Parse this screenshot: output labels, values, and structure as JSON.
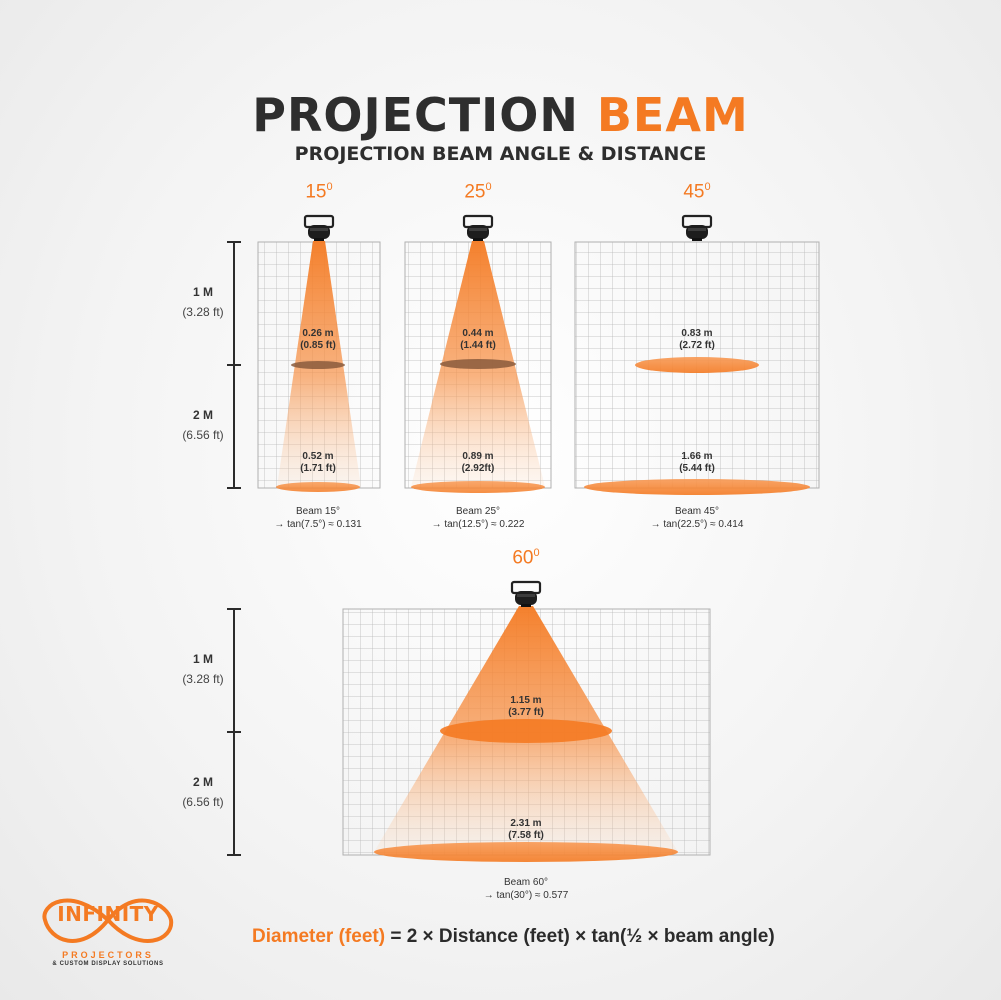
{
  "header": {
    "title_main": "PROJECTION",
    "title_accent": "BEAM",
    "subtitle": "PROJECTION BEAM ANGLE & DISTANCE"
  },
  "scale": {
    "one_m": "1 M",
    "one_m_ft": "(3.28 ft)",
    "two_m": "2 M",
    "two_m_ft": "(6.56 ft)"
  },
  "beams": [
    {
      "angle": "15",
      "mid_m": "0.26 m",
      "mid_ft": "(0.85 ft)",
      "far_m": "0.52 m",
      "far_ft": "(1.71 ft)",
      "caption_1": "Beam 15°",
      "caption_2": "→ tan(7.5°) ≈ 0.131"
    },
    {
      "angle": "25",
      "mid_m": "0.44 m",
      "mid_ft": "(1.44 ft)",
      "far_m": "0.89 m",
      "far_ft": "(2.92ft)",
      "caption_1": "Beam 25°",
      "caption_2": "→ tan(12.5°) ≈ 0.222"
    },
    {
      "angle": "45",
      "mid_m": "0.83 m",
      "mid_ft": "(2.72 ft)",
      "far_m": "1.66 m",
      "far_ft": "(5.44 ft)",
      "caption_1": "Beam 45°",
      "caption_2": "→ tan(22.5°) ≈ 0.414"
    },
    {
      "angle": "60",
      "mid_m": "1.15 m",
      "mid_ft": "(3.77 ft)",
      "far_m": "2.31 m",
      "far_ft": "(7.58 ft)",
      "caption_1": "Beam 60°",
      "caption_2": "→ tan(30°) ≈ 0.577"
    }
  ],
  "formula": {
    "label": "Diameter (feet)",
    "expression": "= 2 × Distance (feet) × tan(½ × beam angle)"
  },
  "logo": {
    "name": "INFINITY",
    "line1": "PROJECTORS",
    "line2": "& CUSTOM DISPLAY SOLUTIONS"
  },
  "colors": {
    "accent": "#f47a22",
    "text": "#2e2e2e",
    "grid": "#b5b5b5"
  }
}
